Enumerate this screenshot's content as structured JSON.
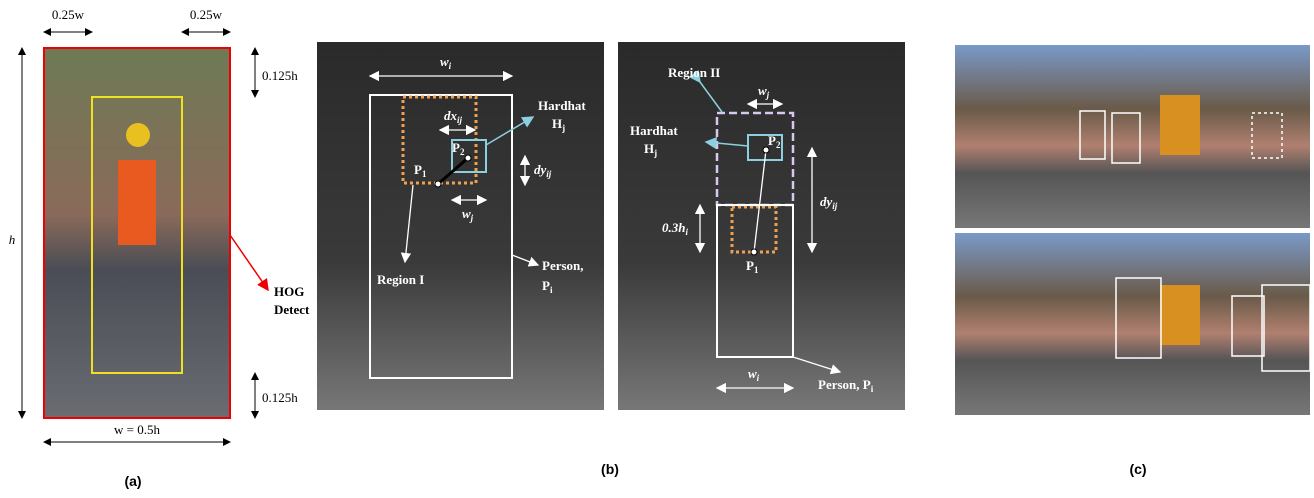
{
  "panel_a": {
    "caption": "(a)",
    "top_left_width": "0.25w",
    "top_right_width": "0.25w",
    "top_height": "0.125h",
    "height": "h",
    "bottom_height": "0.125h",
    "width": "w = 0.5h",
    "detector": [
      "HOG",
      "Detect"
    ]
  },
  "panel_b": {
    "caption": "(b)",
    "left": {
      "person_width": {
        "base": "w",
        "sub": "i"
      },
      "dx": {
        "base": "dx",
        "sub": "ij"
      },
      "hardhat": [
        "Hardhat",
        {
          "base": "H",
          "sub": "j"
        }
      ],
      "p2": {
        "base": "P",
        "sub": "2"
      },
      "p1": {
        "base": "P",
        "sub": "1"
      },
      "dy": {
        "base": "dy",
        "sub": "ij"
      },
      "hardhat_width": {
        "base": "w",
        "sub": "j"
      },
      "region": "Region I",
      "person": [
        "Person,",
        {
          "base": "P",
          "sub": "i"
        }
      ]
    },
    "right": {
      "region": "Region II",
      "hardhat_width": {
        "base": "w",
        "sub": "j"
      },
      "hardhat": [
        "Hardhat",
        {
          "base": "H",
          "sub": "j"
        }
      ],
      "p2": {
        "base": "P",
        "sub": "2"
      },
      "dy": {
        "base": "dy",
        "sub": "ij"
      },
      "offset": {
        "base": "0.3h",
        "sub": "i"
      },
      "p1": {
        "base": "P",
        "sub": "1"
      },
      "person_width": {
        "base": "w",
        "sub": "i"
      },
      "person": {
        "base": "Person, P",
        "sub": "i"
      }
    }
  },
  "panel_c": {
    "caption": "(c)"
  }
}
